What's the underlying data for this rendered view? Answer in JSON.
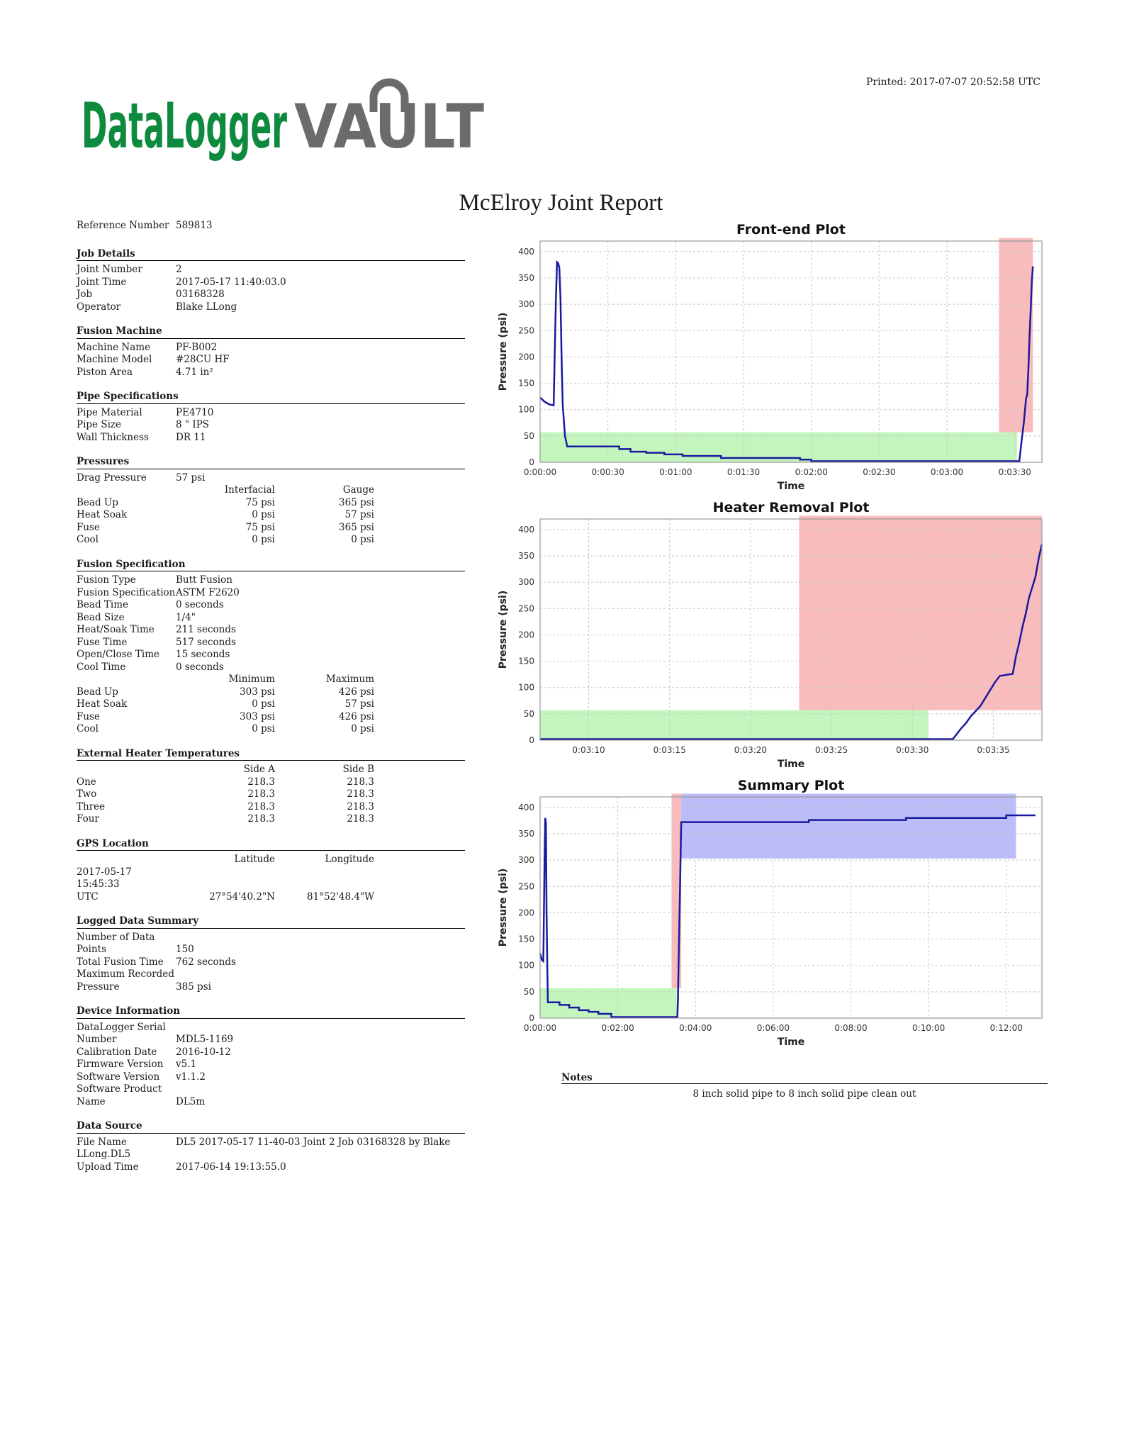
{
  "header": {
    "printed": "Printed: 2017-07-07 20:52:58 UTC",
    "logo": {
      "part1": "DataLogger",
      "part2": "VAULT"
    },
    "title": "McElroy Joint Report"
  },
  "reference": {
    "label": "Reference Number",
    "value": "589813"
  },
  "job_details": {
    "title": "Job Details",
    "rows": [
      {
        "label": "Joint Number",
        "value": "2"
      },
      {
        "label": "Joint Time",
        "value": "2017-05-17 11:40:03.0"
      },
      {
        "label": "Job",
        "value": "03168328"
      },
      {
        "label": "Operator",
        "value": "Blake LLong"
      }
    ]
  },
  "fusion_machine": {
    "title": "Fusion Machine",
    "rows": [
      {
        "label": "Machine Name",
        "value": "PF-B002"
      },
      {
        "label": "Machine Model",
        "value": "#28CU HF"
      },
      {
        "label": "Piston Area",
        "value": "4.71 in²"
      }
    ]
  },
  "pipe_specs": {
    "title": "Pipe Specifications",
    "rows": [
      {
        "label": "Pipe Material",
        "value": "PE4710"
      },
      {
        "label": "Pipe Size",
        "value": "8 \" IPS"
      },
      {
        "label": "Wall Thickness",
        "value": "DR 11"
      }
    ]
  },
  "pressures": {
    "title": "Pressures",
    "drag": {
      "label": "Drag Pressure",
      "value": "57 psi"
    },
    "col1": "Interfacial",
    "col2": "Gauge",
    "rows": [
      {
        "label": "Bead Up",
        "a": "75 psi",
        "b": "365 psi"
      },
      {
        "label": "Heat Soak",
        "a": "0 psi",
        "b": "57 psi"
      },
      {
        "label": "Fuse",
        "a": "75 psi",
        "b": "365 psi"
      },
      {
        "label": "Cool",
        "a": "0 psi",
        "b": "0 psi"
      }
    ]
  },
  "fusion_spec": {
    "title": "Fusion Specification",
    "rows": [
      {
        "label": "Fusion Type",
        "value": "Butt Fusion"
      },
      {
        "label": "Fusion Specification",
        "value": "ASTM F2620"
      },
      {
        "label": "Bead Time",
        "value": "0 seconds"
      },
      {
        "label": "Bead Size",
        "value": "1/4\""
      },
      {
        "label": "Heat/Soak Time",
        "value": "211 seconds"
      },
      {
        "label": "Fuse Time",
        "value": "517 seconds"
      },
      {
        "label": "Open/Close Time",
        "value": "15 seconds"
      },
      {
        "label": "Cool Time",
        "value": "0 seconds"
      }
    ],
    "col1": "Minimum",
    "col2": "Maximum",
    "limits": [
      {
        "label": "Bead Up",
        "a": "303 psi",
        "b": "426 psi"
      },
      {
        "label": "Heat Soak",
        "a": "0 psi",
        "b": "57 psi"
      },
      {
        "label": "Fuse",
        "a": "303 psi",
        "b": "426 psi"
      },
      {
        "label": "Cool",
        "a": "0 psi",
        "b": "0 psi"
      }
    ]
  },
  "heater_temps": {
    "title": "External Heater Temperatures",
    "col1": "Side A",
    "col2": "Side B",
    "rows": [
      {
        "label": "One",
        "a": "218.3",
        "b": "218.3"
      },
      {
        "label": "Two",
        "a": "218.3",
        "b": "218.3"
      },
      {
        "label": "Three",
        "a": "218.3",
        "b": "218.3"
      },
      {
        "label": "Four",
        "a": "218.3",
        "b": "218.3"
      }
    ]
  },
  "gps": {
    "title": "GPS Location",
    "col1": "Latitude",
    "col2": "Longitude",
    "time_line1": "2017-05-17 15:45:33",
    "time_line2": "UTC",
    "lat": "27°54'40.2\"N",
    "lon": "81°52'48.4\"W"
  },
  "logged_summary": {
    "title": "Logged Data Summary",
    "rows": [
      {
        "label1": "Number of Data",
        "label2": "Points",
        "value": "150"
      },
      {
        "label1": "",
        "label2": "Total Fusion Time",
        "value": "762 seconds"
      },
      {
        "label1": "Maximum Recorded",
        "label2": "Pressure",
        "value": "385 psi"
      }
    ]
  },
  "device_info": {
    "title": "Device Information",
    "rows": [
      {
        "label1": "DataLogger Serial",
        "label2": "Number",
        "value": "MDL5-1169"
      },
      {
        "label1": "",
        "label2": "Calibration Date",
        "value": "2016-10-12"
      },
      {
        "label1": "",
        "label2": "Firmware Version",
        "value": "v5.1"
      },
      {
        "label1": "",
        "label2": "Software Version",
        "value": "v1.1.2"
      },
      {
        "label1": "Software Product",
        "label2": "Name",
        "value": "DL5m"
      }
    ]
  },
  "data_source": {
    "title": "Data Source",
    "file_label": "File Name",
    "file_value": "DL5 2017-05-17 11-40-03 Joint 2 Job 03168328 by Blake",
    "file_cont": "LLong.DL5",
    "upload_label": "Upload Time",
    "upload_value": "2017-06-14 19:13:55.0"
  },
  "notes": {
    "title": "Notes",
    "text": "8 inch solid pipe to 8 inch solid pipe clean out"
  },
  "colors": {
    "line": "#1a1aa0",
    "green": "#b8f5b0",
    "red": "#f7b0b0",
    "blue": "#b0b0f7"
  },
  "chart_data": [
    {
      "type": "line",
      "title": "Front-end Plot",
      "xlabel": "Time",
      "ylabel": "Pressure (psi)",
      "xlim": [
        0,
        222
      ],
      "ylim": [
        0,
        420
      ],
      "xticks": [
        0,
        30,
        60,
        90,
        120,
        150,
        180,
        210
      ],
      "xticklabels": [
        "0:00:00",
        "0:00:30",
        "0:01:00",
        "0:01:30",
        "0:02:00",
        "0:02:30",
        "0:03:00",
        "0:03:30"
      ],
      "yticks": [
        0,
        50,
        100,
        150,
        200,
        250,
        300,
        350,
        400
      ],
      "grid": true,
      "bands": [
        {
          "color": "green",
          "x0": 0,
          "x1": 211,
          "y0": 0,
          "y1": 57
        },
        {
          "color": "red",
          "x0": 203,
          "x1": 218,
          "y0": 57,
          "y1": 426
        }
      ],
      "series": [
        {
          "x": [
            0,
            2,
            4,
            6,
            6.5,
            7,
            7.5,
            8,
            8.5,
            9,
            9.5,
            10,
            11,
            12,
            12,
            20,
            35,
            35,
            40,
            40,
            47,
            47,
            55,
            55,
            63,
            63,
            80,
            80,
            115,
            115,
            120,
            120,
            170,
            200,
            212,
            213,
            214,
            215,
            215.5,
            216,
            216.5,
            217,
            217.5,
            218
          ],
          "y": [
            123,
            115,
            110,
            108,
            210,
            310,
            380,
            378,
            370,
            315,
            200,
            110,
            50,
            30,
            30,
            30,
            30,
            25,
            25,
            20,
            20,
            18,
            18,
            15,
            15,
            12,
            12,
            8,
            8,
            5,
            5,
            2,
            2,
            2,
            2,
            40,
            75,
            122,
            128,
            175,
            235,
            285,
            340,
            372
          ]
        }
      ]
    },
    {
      "type": "line",
      "title": "Heater Removal Plot",
      "xlabel": "Time",
      "ylabel": "Pressure (psi)",
      "xlim": [
        187,
        218
      ],
      "ylim": [
        0,
        420
      ],
      "xticks": [
        190,
        195,
        200,
        205,
        210,
        215
      ],
      "xticklabels": [
        "0:03:10",
        "0:03:15",
        "0:03:20",
        "0:03:25",
        "0:03:30",
        "0:03:35"
      ],
      "yticks": [
        0,
        50,
        100,
        150,
        200,
        250,
        300,
        350,
        400
      ],
      "grid": true,
      "bands": [
        {
          "color": "green",
          "x0": 187,
          "x1": 211,
          "y0": 0,
          "y1": 57
        },
        {
          "color": "red",
          "x0": 203,
          "x1": 218,
          "y0": 57,
          "y1": 426
        }
      ],
      "series": [
        {
          "x": [
            187,
            200,
            212.5,
            212.7,
            213.0,
            213.3,
            213.6,
            213.9,
            214.2,
            214.5,
            214.8,
            215.1,
            215.4,
            215.8,
            216.2,
            216.4,
            216.6,
            216.8,
            217,
            217.2,
            217.4,
            217.6,
            217.8,
            218
          ],
          "y": [
            2,
            2,
            2,
            10,
            22,
            32,
            45,
            55,
            65,
            80,
            95,
            110,
            122,
            124,
            126,
            160,
            185,
            215,
            240,
            270,
            290,
            310,
            345,
            372
          ]
        }
      ]
    },
    {
      "type": "line",
      "title": "Summary Plot",
      "xlabel": "Time",
      "ylabel": "Pressure (psi)",
      "xlim": [
        0,
        775
      ],
      "ylim": [
        0,
        420
      ],
      "xticks": [
        0,
        120,
        240,
        360,
        480,
        600,
        720
      ],
      "xticklabels": [
        "0:00:00",
        "0:02:00",
        "0:04:00",
        "0:06:00",
        "0:08:00",
        "0:10:00",
        "0:12:00"
      ],
      "yticks": [
        0,
        50,
        100,
        150,
        200,
        250,
        300,
        350,
        400
      ],
      "grid": true,
      "bands": [
        {
          "color": "green",
          "x0": 0,
          "x1": 211,
          "y0": 0,
          "y1": 57
        },
        {
          "color": "red",
          "x0": 203,
          "x1": 218,
          "y0": 57,
          "y1": 426
        },
        {
          "color": "blue",
          "x0": 218,
          "x1": 735,
          "y0": 303,
          "y1": 426
        }
      ],
      "series": [
        {
          "x": [
            0,
            3,
            5,
            6,
            7,
            8,
            9,
            10,
            11,
            12,
            30,
            30,
            45,
            45,
            60,
            60,
            75,
            75,
            90,
            90,
            110,
            110,
            170,
            212,
            213,
            214,
            215,
            216,
            217,
            218,
            415,
            415,
            565,
            565,
            720,
            720,
            765
          ],
          "y": [
            123,
            110,
            108,
            210,
            310,
            380,
            370,
            200,
            110,
            30,
            30,
            25,
            25,
            20,
            20,
            15,
            15,
            12,
            12,
            8,
            8,
            2,
            2,
            2,
            40,
            110,
            175,
            240,
            310,
            372,
            372,
            376,
            376,
            380,
            380,
            385,
            385
          ]
        }
      ]
    }
  ]
}
